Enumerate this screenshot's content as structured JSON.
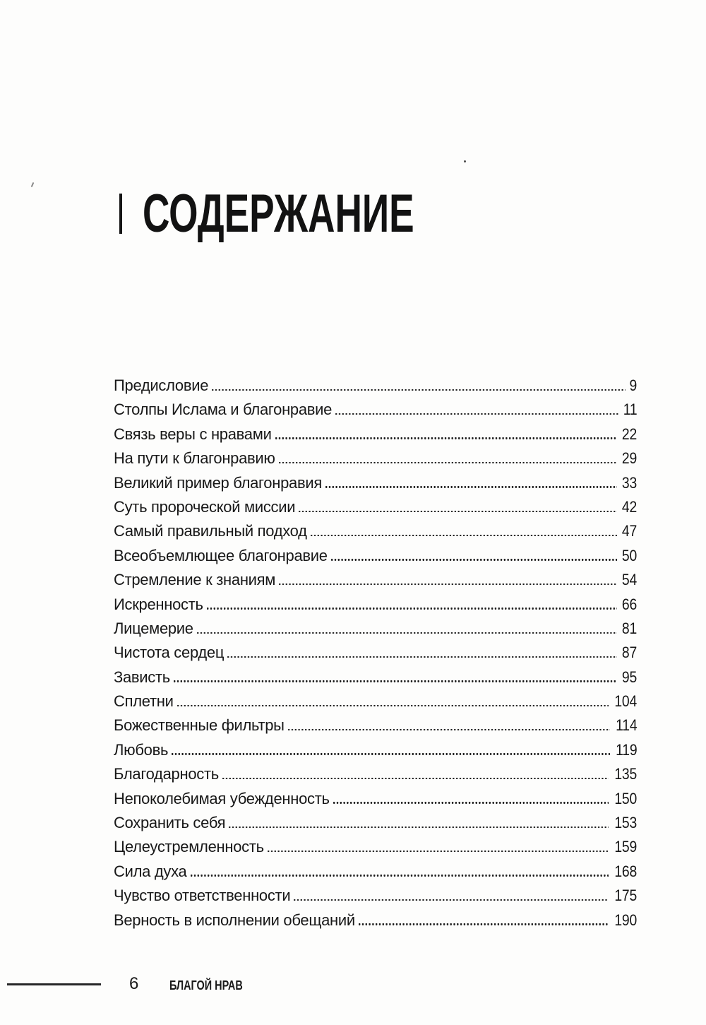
{
  "title": "СОДЕРЖАНИЕ",
  "toc": {
    "entries": [
      {
        "title": "Предисловие",
        "page": "9"
      },
      {
        "title": "Столпы Ислама и благонравие",
        "page": "11"
      },
      {
        "title": "Связь веры с нравами",
        "page": "22"
      },
      {
        "title": "На пути к благонравию",
        "page": "29"
      },
      {
        "title": "Великий пример благонравия",
        "page": "33"
      },
      {
        "title": "Суть пророческой миссии",
        "page": "42"
      },
      {
        "title": "Самый правильный подход",
        "page": "47"
      },
      {
        "title": "Всеобъемлющее благонравие",
        "page": "50"
      },
      {
        "title": "Стремление к знаниям",
        "page": "54"
      },
      {
        "title": "Искренность",
        "page": "66"
      },
      {
        "title": "Лицемерие",
        "page": "81"
      },
      {
        "title": "Чистота сердец",
        "page": "87"
      },
      {
        "title": "Зависть",
        "page": "95"
      },
      {
        "title": "Сплетни",
        "page": "104"
      },
      {
        "title": "Божественные фильтры",
        "page": "114"
      },
      {
        "title": "Любовь",
        "page": "119"
      },
      {
        "title": "Благодарность",
        "page": "135"
      },
      {
        "title": "Непоколебимая убежденность",
        "page": "150"
      },
      {
        "title": "Сохранить себя",
        "page": "153"
      },
      {
        "title": "Целеустремленность",
        "page": "159"
      },
      {
        "title": "Сила духа",
        "page": "168"
      },
      {
        "title": "Чувство ответственности",
        "page": "175"
      },
      {
        "title": "Верность в исполнении обещаний",
        "page": "190"
      }
    ]
  },
  "footer": {
    "page_number": "6",
    "book_title": "БЛАГОЙ НРАВ"
  },
  "colors": {
    "ink": "#161616",
    "paper": "#fdfdfc"
  }
}
